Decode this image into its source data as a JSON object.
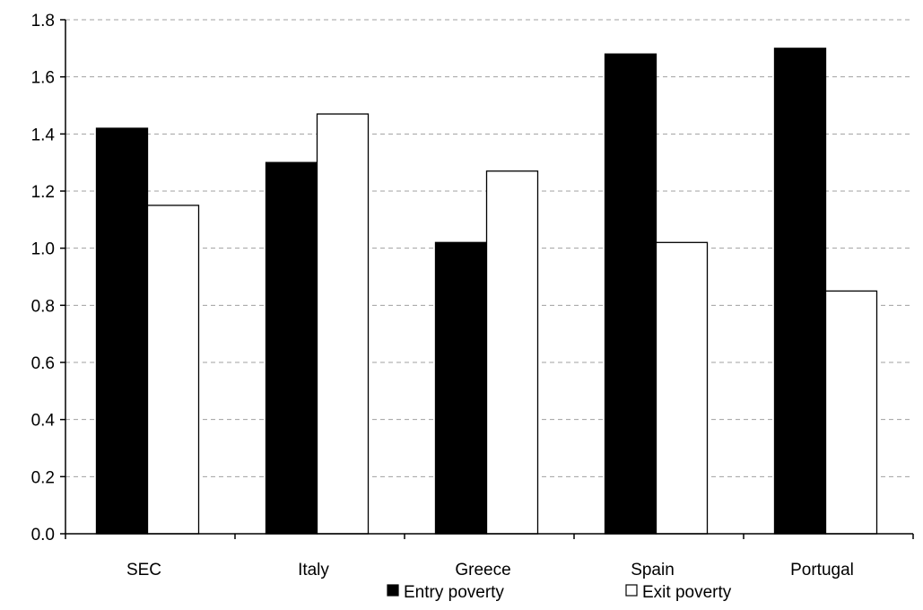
{
  "chart_data": {
    "type": "bar",
    "categories": [
      "SEC",
      "Italy",
      "Greece",
      "Spain",
      "Portugal"
    ],
    "series": [
      {
        "name": "Entry poverty",
        "values": [
          1.42,
          1.3,
          1.02,
          1.68,
          1.7
        ],
        "color": "#000000"
      },
      {
        "name": "Exit poverty",
        "values": [
          1.15,
          1.47,
          1.27,
          1.02,
          0.85
        ],
        "color": "#ffffff"
      }
    ],
    "ylim": [
      0,
      1.8
    ],
    "yticks": [
      "0.0",
      "0.2",
      "0.4",
      "0.6",
      "0.8",
      "1.0",
      "1.2",
      "1.4",
      "1.6",
      "1.8"
    ],
    "grid": true,
    "legend_position": "bottom"
  }
}
